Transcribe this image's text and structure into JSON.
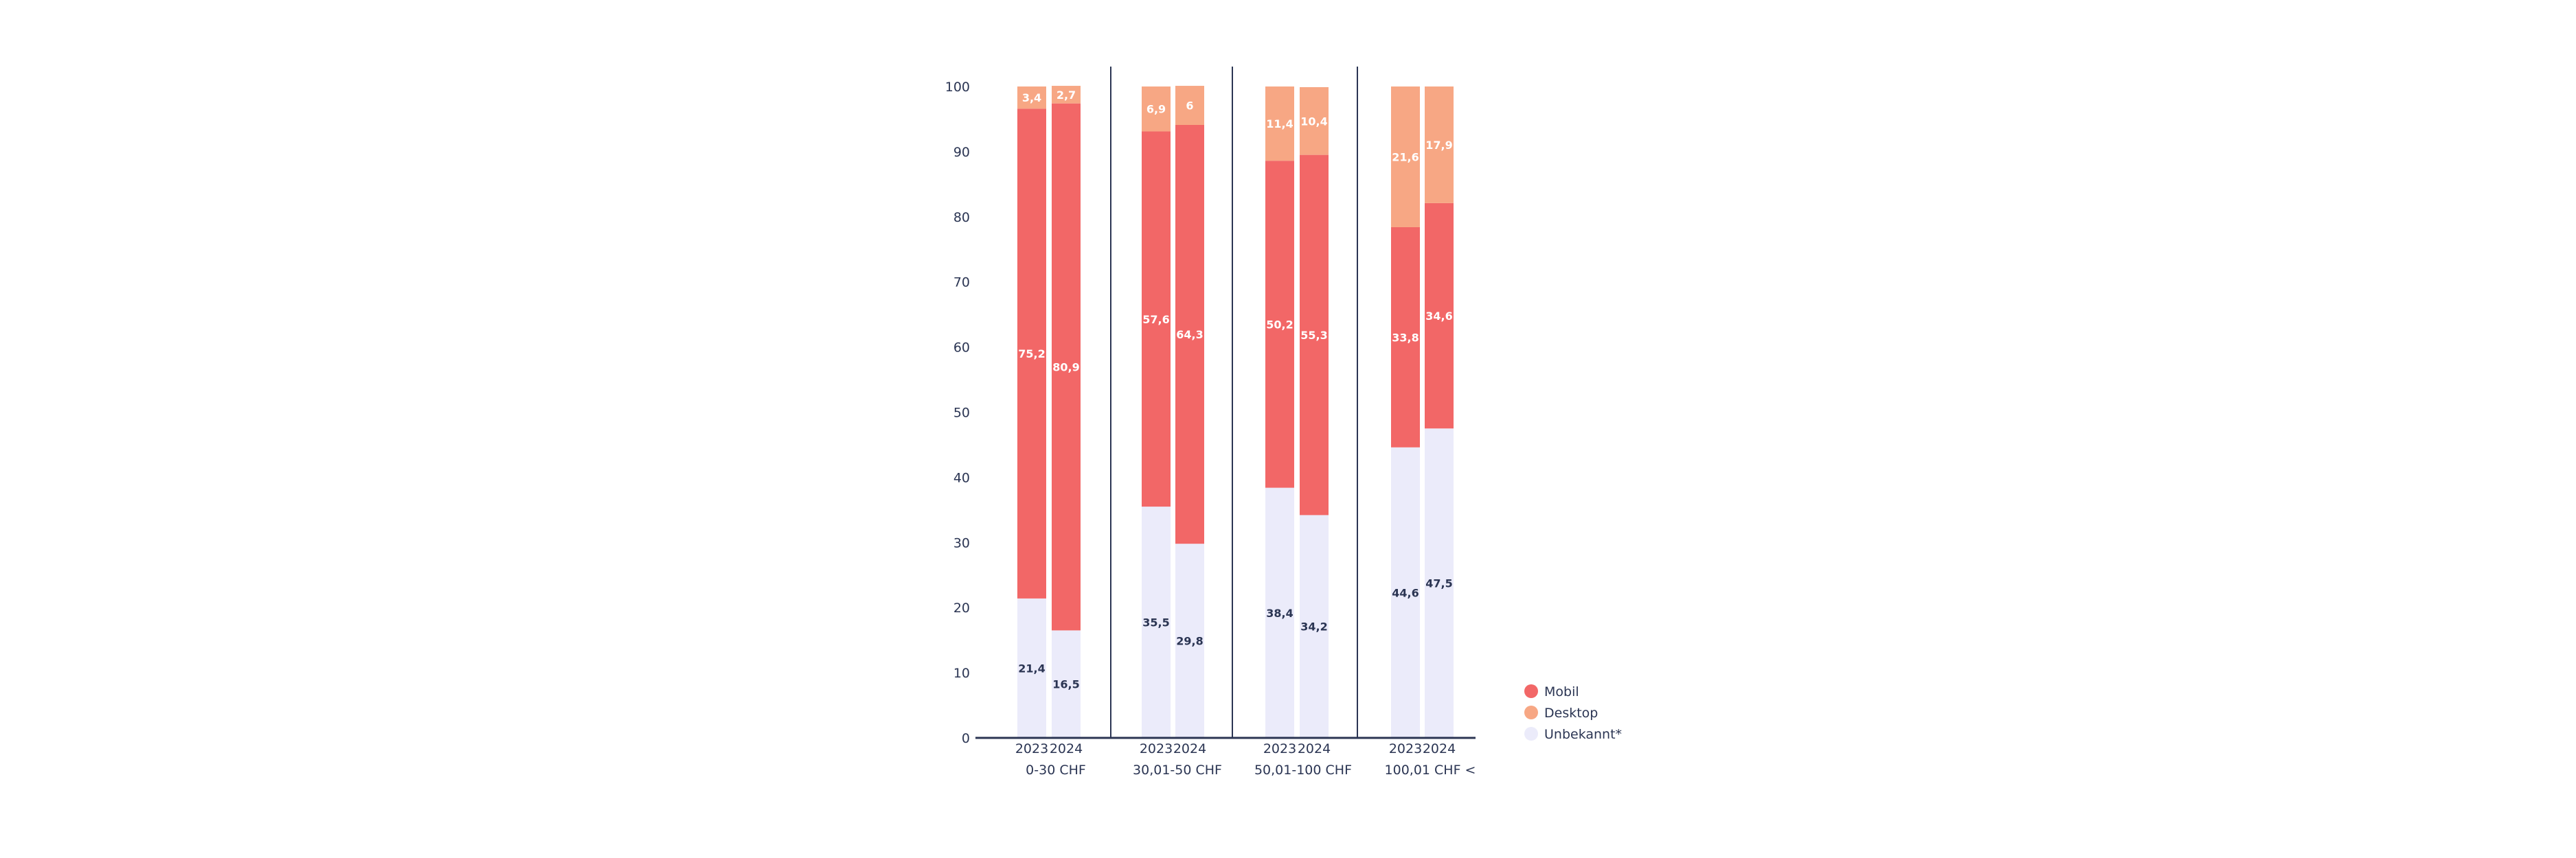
{
  "chart_data": {
    "type": "bar",
    "stacked": true,
    "ylim": [
      0,
      100
    ],
    "yticks": [
      "0",
      "10",
      "20",
      "30",
      "40",
      "50",
      "60",
      "70",
      "80",
      "90",
      "100"
    ],
    "groups": [
      {
        "label": "0-30 CHF",
        "years": [
          "2023",
          "2024"
        ]
      },
      {
        "label": "30,01-50 CHF",
        "years": [
          "2023",
          "2024"
        ]
      },
      {
        "label": "50,01-100 CHF",
        "years": [
          "2023",
          "2024"
        ]
      },
      {
        "label": "100,01 CHF <",
        "years": [
          "2023",
          "2024"
        ]
      }
    ],
    "series": [
      {
        "name": "Unbekannt*",
        "color": "#ebebfa",
        "label_color": "#2b3553",
        "values": [
          21.4,
          16.5,
          35.5,
          29.8,
          38.4,
          34.2,
          44.6,
          47.5
        ],
        "labels": [
          "21,4",
          "16,5",
          "35,5",
          "29,8",
          "38,4",
          "34,2",
          "44,6",
          "47,5"
        ]
      },
      {
        "name": "Mobil",
        "color": "#f26767",
        "label_color": "#ffffff",
        "values": [
          75.2,
          80.9,
          57.6,
          64.3,
          50.2,
          55.3,
          33.8,
          34.6
        ],
        "labels": [
          "75,2",
          "80,9",
          "57,6",
          "64,3",
          "50,2",
          "55,3",
          "33,8",
          "34,6"
        ]
      },
      {
        "name": "Desktop",
        "color": "#f7a784",
        "label_color": "#ffffff",
        "values": [
          3.4,
          2.7,
          6.9,
          6,
          11.4,
          10.4,
          21.6,
          17.9
        ],
        "labels": [
          "3,4",
          "2,7",
          "6,9",
          "6",
          "11,4",
          "10,4",
          "21,6",
          "17,9"
        ]
      }
    ],
    "legend": {
      "position": "right",
      "entries": [
        {
          "name": "Mobil",
          "color": "#f26767"
        },
        {
          "name": "Desktop",
          "color": "#f7a784"
        },
        {
          "name": "Unbekannt*",
          "color": "#ebebfa"
        }
      ]
    },
    "axis_color": "#2b3553",
    "grid": false
  }
}
